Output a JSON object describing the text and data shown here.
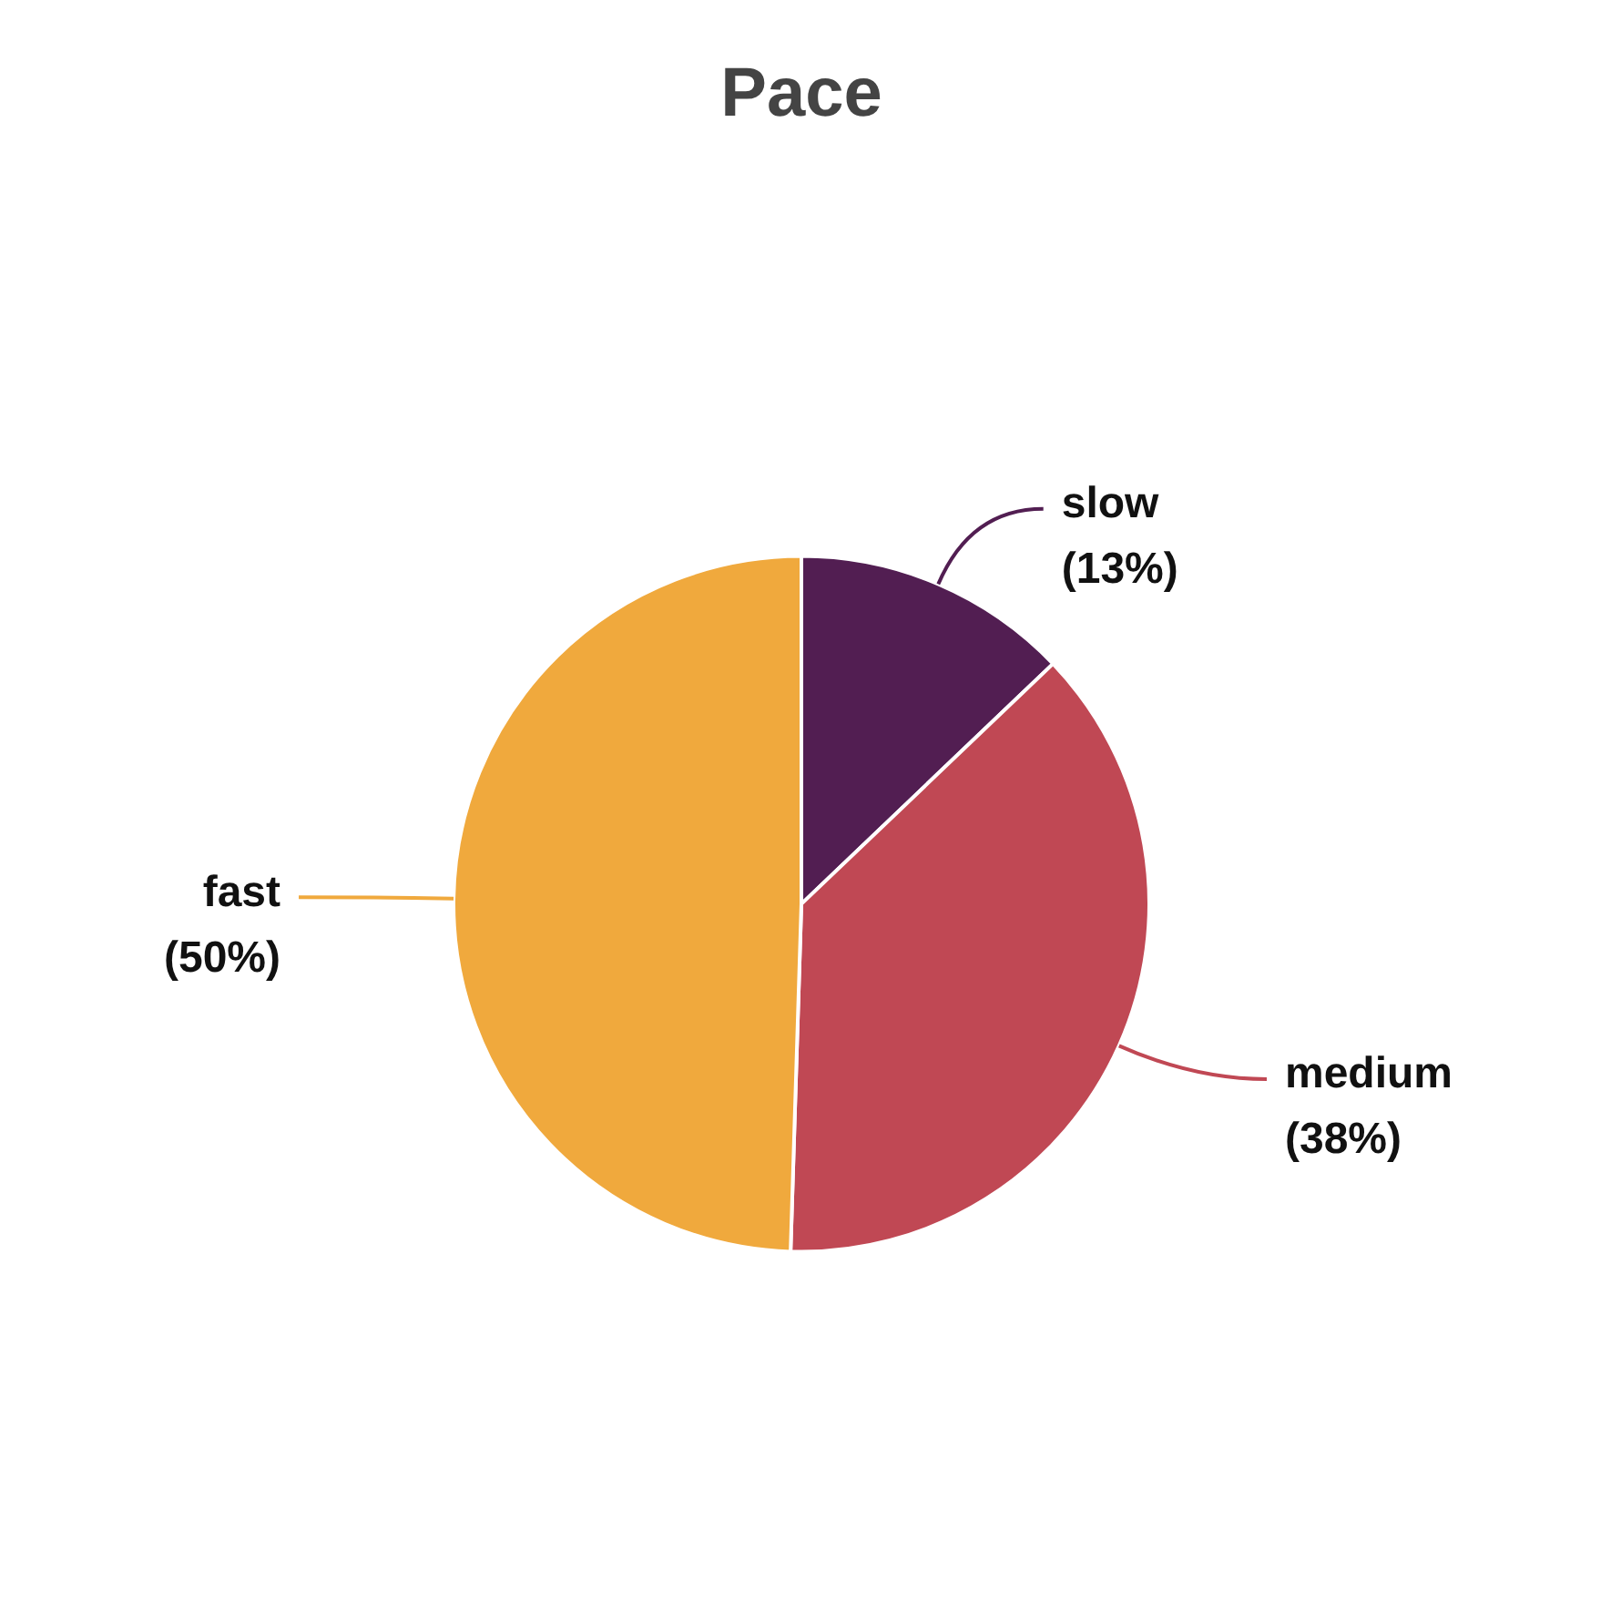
{
  "chart_data": {
    "type": "pie",
    "title": "Pace",
    "categories": [
      "slow",
      "medium",
      "fast"
    ],
    "values": [
      13,
      38,
      50
    ],
    "value_labels": [
      "(13%)",
      "(38%)",
      "(50%)"
    ],
    "colors": [
      "#521e52",
      "#c04854",
      "#f0a93d"
    ],
    "legend": false
  }
}
